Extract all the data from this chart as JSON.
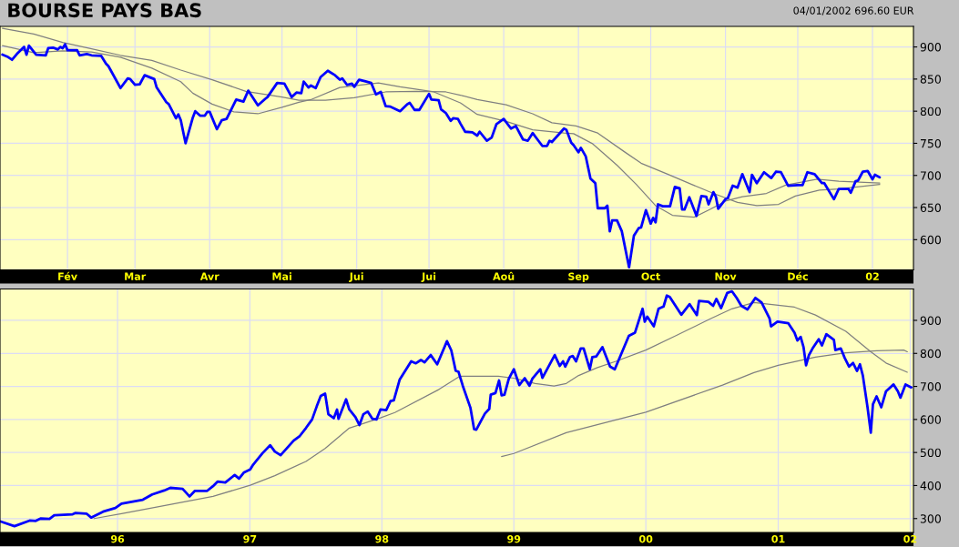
{
  "chart_data": [
    {
      "type": "line",
      "title": "BOURSE PAYS BAS",
      "subtitle": "04/01/2002 696.60 EUR",
      "xlim": [
        "2001-01-04",
        "2002-01-18"
      ],
      "ylim": [
        553,
        932
      ],
      "yticks": [
        600,
        650,
        700,
        750,
        800,
        850,
        900
      ],
      "xticks": [
        {
          "value": "2001-02-01",
          "label": "Fév"
        },
        {
          "value": "2001-03-01",
          "label": "Mar"
        },
        {
          "value": "2001-04-01",
          "label": "Avr"
        },
        {
          "value": "2001-05-01",
          "label": "Mai"
        },
        {
          "value": "2001-06-01",
          "label": "Jui"
        },
        {
          "value": "2001-07-01",
          "label": "Jui"
        },
        {
          "value": "2001-08-01",
          "label": "Aoû"
        },
        {
          "value": "2001-09-01",
          "label": "Sep"
        },
        {
          "value": "2001-10-01",
          "label": "Oct"
        },
        {
          "value": "2001-11-01",
          "label": "Nov"
        },
        {
          "value": "2001-12-01",
          "label": "Déc"
        },
        {
          "value": "2002-01-01",
          "label": "02"
        }
      ],
      "grid": true,
      "legend": false,
      "series": [
        {
          "color": "#808080",
          "x": [
            "2001-01-05",
            "2001-01-18",
            "2001-01-30",
            "2001-02-11",
            "2001-02-23",
            "2001-03-08",
            "2001-03-20",
            "2001-04-02",
            "2001-04-16",
            "2001-05-01",
            "2001-05-08",
            "2001-05-19",
            "2001-05-31",
            "2001-06-13",
            "2001-06-26",
            "2001-07-08",
            "2001-07-14",
            "2001-07-21",
            "2001-08-02",
            "2001-08-13",
            "2001-08-21",
            "2001-08-31",
            "2001-09-09",
            "2001-09-20",
            "2001-09-27",
            "2001-10-08",
            "2001-10-18",
            "2001-10-27",
            "2001-11-06",
            "2001-11-14",
            "2001-11-23",
            "2001-11-30",
            "2001-12-10",
            "2001-12-18",
            "2002-01-04"
          ],
          "values": [
            929,
            920,
            907,
            897,
            887,
            879,
            864,
            849,
            831,
            822,
            817,
            817,
            821,
            830,
            831,
            830,
            825,
            818,
            810,
            796,
            782,
            777,
            766,
            737,
            719,
            702,
            686,
            672,
            658,
            653,
            655,
            668,
            677,
            679,
            686
          ]
        },
        {
          "color": "#808080",
          "x": [
            "2001-01-05",
            "2001-01-18",
            "2001-01-30",
            "2001-02-11",
            "2001-02-23",
            "2001-03-08",
            "2001-03-20",
            "2001-03-25",
            "2001-04-02",
            "2001-04-11",
            "2001-04-21",
            "2001-05-01",
            "2001-05-08",
            "2001-05-13",
            "2001-05-25",
            "2001-06-10",
            "2001-06-19",
            "2001-07-03",
            "2001-07-14",
            "2001-07-21",
            "2001-08-02",
            "2001-08-13",
            "2001-08-26",
            "2001-08-30",
            "2001-09-07",
            "2001-09-17",
            "2001-09-25",
            "2001-10-03",
            "2001-10-10",
            "2001-10-19",
            "2001-10-26",
            "2001-11-01",
            "2001-11-08",
            "2001-11-18",
            "2001-11-26",
            "2001-12-09",
            "2001-12-18",
            "2002-01-04"
          ],
          "values": [
            902,
            891,
            894,
            892,
            884,
            867,
            846,
            828,
            811,
            799,
            796,
            806,
            814,
            818,
            837,
            844,
            838,
            830,
            813,
            795,
            784,
            771,
            766,
            765,
            749,
            716,
            686,
            653,
            638,
            635,
            648,
            660,
            667,
            672,
            685,
            694,
            691,
            688
          ]
        },
        {
          "color": "#0000ff",
          "x": [
            "2001-01-05",
            "2001-01-07",
            "2001-01-09",
            "2001-01-11",
            "2001-01-14",
            "2001-01-15",
            "2001-01-16",
            "2001-01-19",
            "2001-01-23",
            "2001-01-24",
            "2001-01-26",
            "2001-01-28",
            "2001-01-29",
            "2001-01-30",
            "2001-01-31",
            "2001-02-01",
            "2001-02-05",
            "2001-02-06",
            "2001-02-09",
            "2001-02-11",
            "2001-02-15",
            "2001-02-17",
            "2001-02-18",
            "2001-02-23",
            "2001-02-26",
            "2001-02-27",
            "2001-03-01",
            "2001-03-03",
            "2001-03-05",
            "2001-03-09",
            "2001-03-10",
            "2001-03-14",
            "2001-03-15",
            "2001-03-18",
            "2001-03-19",
            "2001-03-20",
            "2001-03-22",
            "2001-03-25",
            "2001-03-26",
            "2001-03-28",
            "2001-03-30",
            "2001-03-31",
            "2001-04-01",
            "2001-04-04",
            "2001-04-06",
            "2001-04-08",
            "2001-04-12",
            "2001-04-15",
            "2001-04-17",
            "2001-04-21",
            "2001-04-24",
            "2001-04-25",
            "2001-04-29",
            "2001-05-02",
            "2001-05-05",
            "2001-05-07",
            "2001-05-09",
            "2001-05-10",
            "2001-05-12",
            "2001-05-13",
            "2001-05-15",
            "2001-05-17",
            "2001-05-20",
            "2001-05-23",
            "2001-05-25",
            "2001-05-26",
            "2001-05-28",
            "2001-05-30",
            "2001-05-31",
            "2001-06-02",
            "2001-06-05",
            "2001-06-07",
            "2001-06-09",
            "2001-06-11",
            "2001-06-13",
            "2001-06-15",
            "2001-06-19",
            "2001-06-22",
            "2001-06-23",
            "2001-06-25",
            "2001-06-27",
            "2001-07-01",
            "2001-07-02",
            "2001-07-05",
            "2001-07-06",
            "2001-07-08",
            "2001-07-10",
            "2001-07-11",
            "2001-07-13",
            "2001-07-14",
            "2001-07-16",
            "2001-07-19",
            "2001-07-21",
            "2001-07-22",
            "2001-07-25",
            "2001-07-27",
            "2001-07-29",
            "2001-08-01",
            "2001-08-04",
            "2001-08-06",
            "2001-08-09",
            "2001-08-11",
            "2001-08-13",
            "2001-08-15",
            "2001-08-17",
            "2001-08-19",
            "2001-08-20",
            "2001-08-21",
            "2001-08-26",
            "2001-08-27",
            "2001-08-29",
            "2001-08-30",
            "2001-09-01",
            "2001-09-02",
            "2001-09-04",
            "2001-09-06",
            "2001-09-08",
            "2001-09-09",
            "2001-09-12",
            "2001-09-13",
            "2001-09-14",
            "2001-09-15",
            "2001-09-17",
            "2001-09-19",
            "2001-09-22",
            "2001-09-24",
            "2001-09-26",
            "2001-09-27",
            "2001-09-29",
            "2001-10-01",
            "2001-10-02",
            "2001-10-03",
            "2001-10-04",
            "2001-10-06",
            "2001-10-09",
            "2001-10-11",
            "2001-10-13",
            "2001-10-14",
            "2001-10-15",
            "2001-10-17",
            "2001-10-20",
            "2001-10-22",
            "2001-10-24",
            "2001-10-25",
            "2001-10-27",
            "2001-10-28",
            "2001-10-29",
            "2001-11-01",
            "2001-11-02",
            "2001-11-04",
            "2001-11-06",
            "2001-11-08",
            "2001-11-11",
            "2001-11-12",
            "2001-11-14",
            "2001-11-17",
            "2001-11-20",
            "2001-11-22",
            "2001-11-24",
            "2001-11-27",
            "2001-12-01",
            "2001-12-03",
            "2001-12-05",
            "2001-12-08",
            "2001-12-11",
            "2001-12-12",
            "2001-12-16",
            "2001-12-18",
            "2001-12-22",
            "2001-12-23",
            "2001-12-25",
            "2001-12-26",
            "2001-12-28",
            "2001-12-30",
            "2002-01-01",
            "2002-01-02",
            "2002-01-04"
          ],
          "values": [
            888,
            885,
            880,
            889,
            900,
            888,
            902,
            888,
            887,
            898,
            899,
            896,
            900,
            898,
            904,
            895,
            895,
            887,
            889,
            887,
            886,
            874,
            870,
            836,
            851,
            850,
            841,
            842,
            856,
            850,
            837,
            814,
            811,
            789,
            795,
            786,
            750,
            790,
            800,
            793,
            793,
            799,
            799,
            772,
            786,
            788,
            818,
            815,
            832,
            809,
            819,
            822,
            844,
            843,
            822,
            829,
            828,
            846,
            837,
            840,
            836,
            853,
            863,
            856,
            849,
            851,
            841,
            843,
            838,
            849,
            846,
            844,
            826,
            830,
            808,
            807,
            800,
            811,
            813,
            802,
            802,
            827,
            818,
            817,
            803,
            797,
            785,
            789,
            788,
            781,
            768,
            767,
            762,
            768,
            754,
            759,
            780,
            788,
            773,
            777,
            756,
            754,
            766,
            756,
            746,
            746,
            754,
            752,
            773,
            771,
            751,
            747,
            736,
            743,
            730,
            695,
            688,
            649,
            649,
            653,
            613,
            630,
            630,
            613,
            557,
            606,
            618,
            619,
            646,
            625,
            634,
            627,
            655,
            652,
            652,
            682,
            680,
            647,
            647,
            666,
            637,
            668,
            667,
            655,
            674,
            667,
            648,
            663,
            665,
            684,
            681,
            702,
            674,
            701,
            688,
            705,
            696,
            706,
            705,
            684,
            685,
            685,
            705,
            702,
            688,
            688,
            663,
            679,
            679,
            673,
            691,
            692,
            706,
            707,
            694,
            701,
            697
          ]
        }
      ]
    },
    {
      "type": "line",
      "xlim": [
        "1995-02-10",
        "2002-01-10"
      ],
      "ylim": [
        258,
        995
      ],
      "yticks": [
        300,
        400,
        500,
        600,
        700,
        800,
        900
      ],
      "xticks": [
        {
          "value": "1996-01-01",
          "label": "96"
        },
        {
          "value": "1997-01-01",
          "label": "97"
        },
        {
          "value": "1998-01-01",
          "label": "98"
        },
        {
          "value": "1999-01-01",
          "label": "99"
        },
        {
          "value": "2000-01-01",
          "label": "00"
        },
        {
          "value": "2001-01-01",
          "label": "01"
        },
        {
          "value": "2002-01-01",
          "label": "02"
        }
      ],
      "grid": true,
      "legend": false,
      "series": [
        {
          "color": "#808080",
          "x": [
            "1995-10-28",
            "1996-01-12",
            "1996-05-18",
            "1996-09-21",
            "1997-01-02",
            "1997-03-11",
            "1997-06-05",
            "1997-07-28",
            "1997-10-03",
            "1997-12-28",
            "1998-02-06",
            "1998-06-08",
            "1998-08-05",
            "1998-09-15",
            "1998-11-19",
            "1999-01-01",
            "1999-03-01",
            "1999-04-22",
            "1999-05-26",
            "1999-06-29",
            "1999-08-20",
            "1999-10-10",
            "2000-01-01",
            "2000-03-23",
            "2000-06-26",
            "2000-08-26",
            "2000-10-26",
            "2001-01-01",
            "2001-02-15",
            "2001-04-14",
            "2001-07-07",
            "2001-09-14",
            "2001-10-26",
            "2001-12-24"
          ],
          "values": [
            300,
            315,
            341,
            367,
            401,
            430,
            473,
            512,
            574,
            605,
            621,
            691,
            731,
            731,
            731,
            725,
            709,
            701,
            709,
            733,
            757,
            776,
            810,
            853,
            904,
            935,
            954,
            946,
            940,
            916,
            867,
            805,
            771,
            743
          ]
        },
        {
          "color": "#808080",
          "x": [
            "1998-11-28",
            "1999-01-01",
            "1999-05-26",
            "2000-01-01",
            "2000-07-31",
            "2000-10-26",
            "2001-01-01",
            "2001-04-14",
            "2001-07-07",
            "2001-09-30",
            "2001-12-14",
            "2001-12-24"
          ],
          "values": [
            488,
            497,
            560,
            622,
            704,
            742,
            764,
            789,
            802,
            808,
            810,
            805
          ]
        },
        {
          "color": "#0000ff",
          "x": [
            "1995-02-12",
            "1995-03-22",
            "1995-05-03",
            "1995-05-20",
            "1995-06-02",
            "1995-06-27",
            "1995-07-10",
            "1995-08-30",
            "1995-09-07",
            "1995-10-07",
            "1995-10-20",
            "1995-11-22",
            "1995-12-26",
            "1996-01-12",
            "1996-03-11",
            "1996-04-06",
            "1996-05-09",
            "1996-05-26",
            "1996-06-29",
            "1996-07-18",
            "1996-08-02",
            "1996-09-05",
            "1996-09-21",
            "1996-10-04",
            "1996-10-25",
            "1996-11-20",
            "1996-12-02",
            "1996-12-15",
            "1997-01-02",
            "1997-01-10",
            "1997-02-05",
            "1997-02-26",
            "1997-03-11",
            "1997-03-27",
            "1997-05-02",
            "1997-05-19",
            "1997-06-05",
            "1997-06-22",
            "1997-07-05",
            "1997-07-16",
            "1997-07-28",
            "1997-08-06",
            "1997-08-21",
            "1997-08-30",
            "1997-09-03",
            "1997-09-24",
            "1997-10-03",
            "1997-10-20",
            "1997-10-31",
            "1997-11-11",
            "1997-11-23",
            "1997-12-06",
            "1997-12-17",
            "1997-12-28",
            "1998-01-13",
            "1998-01-25",
            "1998-02-03",
            "1998-02-19",
            "1998-03-23",
            "1998-04-05",
            "1998-04-19",
            "1998-04-29",
            "1998-05-16",
            "1998-06-03",
            "1998-06-30",
            "1998-07-12",
            "1998-07-24",
            "1998-08-01",
            "1998-08-13",
            "1998-09-03",
            "1998-09-13",
            "1998-09-19",
            "1998-10-13",
            "1998-10-25",
            "1998-10-29",
            "1998-11-11",
            "1998-11-21",
            "1998-11-28",
            "1998-12-06",
            "1998-12-18",
            "1999-01-01",
            "1999-01-16",
            "1999-01-31",
            "1999-02-13",
            "1999-02-21",
            "1999-03-15",
            "1999-03-21",
            "1999-04-24",
            "1999-05-08",
            "1999-05-17",
            "1999-05-23",
            "1999-06-05",
            "1999-06-13",
            "1999-06-22",
            "1999-07-05",
            "1999-07-13",
            "1999-07-30",
            "1999-08-06",
            "1999-08-17",
            "1999-09-03",
            "1999-09-24",
            "1999-10-07",
            "1999-11-15",
            "1999-12-02",
            "1999-12-23",
            "1999-12-29",
            "2000-01-05",
            "2000-01-23",
            "2000-02-05",
            "2000-02-19",
            "2000-02-28",
            "2000-03-07",
            "2000-03-23",
            "2000-04-08",
            "2000-05-01",
            "2000-05-21",
            "2000-05-27",
            "2000-06-22",
            "2000-07-05",
            "2000-07-14",
            "2000-07-27",
            "2000-08-13",
            "2000-08-26",
            "2000-09-08",
            "2000-09-21",
            "2000-10-08",
            "2000-10-30",
            "2000-11-16",
            "2000-12-08",
            "2000-12-12",
            "2000-12-30",
            "2001-01-29",
            "2001-02-15",
            "2001-02-23",
            "2001-03-04",
            "2001-03-12",
            "2001-03-19",
            "2001-03-27",
            "2001-04-06",
            "2001-04-23",
            "2001-05-02",
            "2001-05-14",
            "2001-06-04",
            "2001-06-08",
            "2001-06-23",
            "2001-07-04",
            "2001-07-16",
            "2001-07-27",
            "2001-08-07",
            "2001-08-15",
            "2001-08-23",
            "2001-09-05",
            "2001-09-14",
            "2001-09-20",
            "2001-09-30",
            "2001-10-13",
            "2001-10-26",
            "2001-11-16",
            "2001-11-28",
            "2001-12-05",
            "2001-12-19",
            "2002-01-04"
          ],
          "values": [
            291,
            277,
            294,
            293,
            300,
            299,
            310,
            313,
            317,
            315,
            303,
            321,
            332,
            345,
            357,
            373,
            385,
            393,
            390,
            367,
            384,
            384,
            398,
            412,
            409,
            432,
            421,
            439,
            449,
            463,
            498,
            522,
            503,
            492,
            536,
            550,
            574,
            600,
            640,
            671,
            678,
            616,
            604,
            630,
            602,
            661,
            630,
            607,
            583,
            616,
            624,
            602,
            600,
            630,
            628,
            656,
            658,
            720,
            776,
            770,
            780,
            773,
            795,
            767,
            837,
            809,
            748,
            744,
            701,
            635,
            571,
            569,
            618,
            632,
            675,
            680,
            718,
            673,
            675,
            723,
            752,
            704,
            725,
            702,
            723,
            752,
            726,
            795,
            762,
            776,
            760,
            789,
            792,
            776,
            815,
            815,
            752,
            789,
            791,
            819,
            760,
            752,
            853,
            863,
            935,
            896,
            911,
            882,
            935,
            942,
            975,
            971,
            944,
            917,
            949,
            916,
            959,
            956,
            944,
            965,
            937,
            983,
            988,
            968,
            944,
            933,
            968,
            954,
            906,
            882,
            896,
            891,
            863,
            839,
            850,
            819,
            764,
            795,
            815,
            843,
            824,
            858,
            841,
            810,
            815,
            786,
            760,
            771,
            747,
            767,
            733,
            637,
            560,
            646,
            670,
            637,
            685,
            706,
            685,
            666,
            706,
            697
          ]
        }
      ]
    }
  ]
}
